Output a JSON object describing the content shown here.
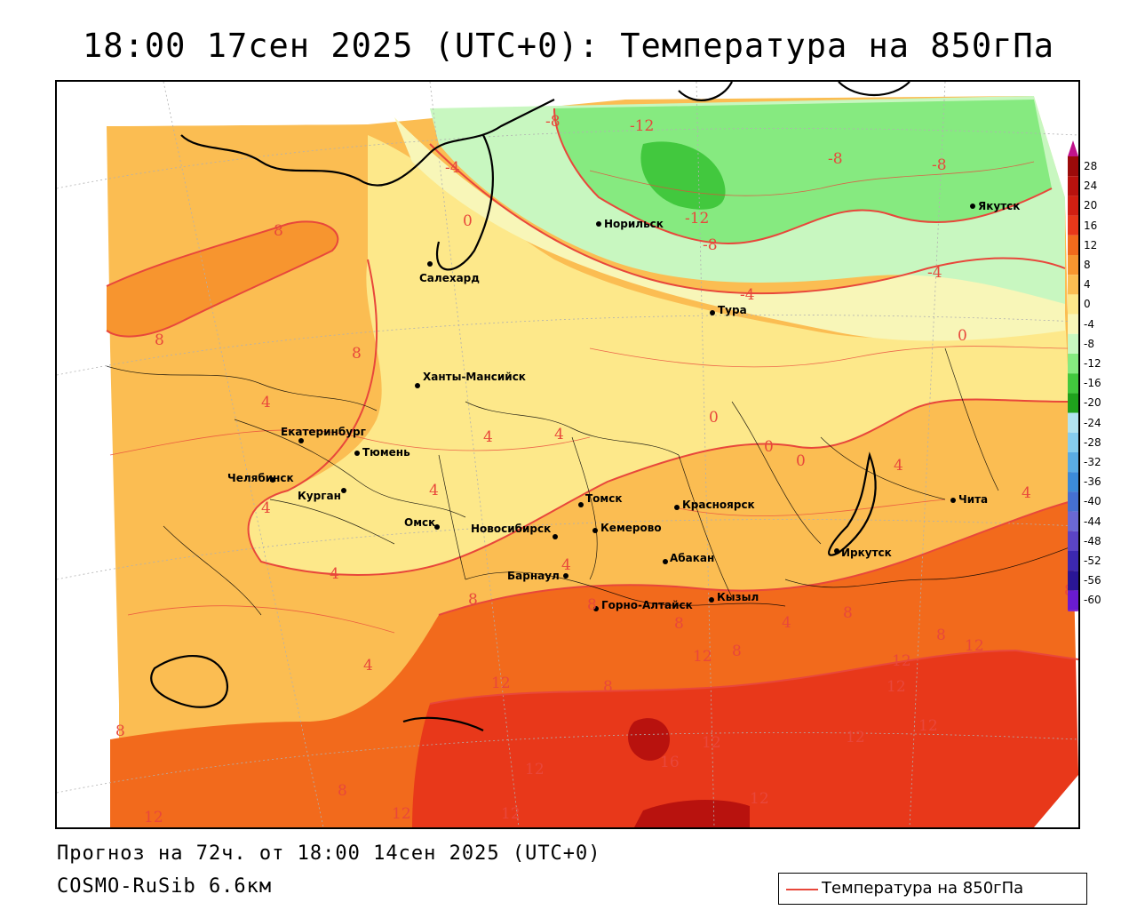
{
  "header": {
    "title": "18:00 17сен 2025 (UTC+0): Температура на 850гПа"
  },
  "footer": {
    "forecast": "Прогноз на 72ч. от 18:00 14сен 2025 (UTC+0)",
    "model": "COSMO-RuSib 6.6км"
  },
  "legend": {
    "label": "Температура на 850гПа",
    "line_color": "#e8473b"
  },
  "colorbar": {
    "labels": [
      "28",
      "24",
      "20",
      "16",
      "12",
      "8",
      "4",
      "0",
      "-4",
      "-8",
      "-12",
      "-16",
      "-20",
      "-24",
      "-28",
      "-32",
      "-36",
      "-40",
      "-44",
      "-48",
      "-52",
      "-56",
      "-60"
    ],
    "colors": [
      "#9b0a0a",
      "#b8120e",
      "#d21f12",
      "#e8381a",
      "#f26a1c",
      "#f7952f",
      "#fbbd52",
      "#fde88a",
      "#f8f6b8",
      "#c8f7c0",
      "#86ea80",
      "#42c83e",
      "#1fa21d",
      "#b2e4f0",
      "#86cdee",
      "#5aace4",
      "#3c8bd8",
      "#4570d2",
      "#6a68d4",
      "#5b44c4",
      "#3c28b0",
      "#2a1696",
      "#6a1bd0"
    ],
    "top_arrow_color": "#c0138c",
    "bottom_arrow_color": "#8a22c8"
  },
  "cities": [
    {
      "name": "Норильск"
    },
    {
      "name": "Якутск"
    },
    {
      "name": "Салехард"
    },
    {
      "name": "Тура"
    },
    {
      "name": "Ханты-Мансийск"
    },
    {
      "name": "Екатеринбург"
    },
    {
      "name": "Тюмень"
    },
    {
      "name": "Челябинск"
    },
    {
      "name": "Курган"
    },
    {
      "name": "Омск"
    },
    {
      "name": "Новосибирск"
    },
    {
      "name": "Томск"
    },
    {
      "name": "Кемерово"
    },
    {
      "name": "Красноярск"
    },
    {
      "name": "Абакан"
    },
    {
      "name": "Барнаул"
    },
    {
      "name": "Горно-Алтайск"
    },
    {
      "name": "Кызыл"
    },
    {
      "name": "Иркутск"
    },
    {
      "name": "Чита"
    }
  ],
  "isolines": [
    {
      "value": "-8"
    },
    {
      "value": "-12"
    },
    {
      "value": "-4"
    },
    {
      "value": "-8"
    },
    {
      "value": "-8"
    },
    {
      "value": "0"
    },
    {
      "value": "-12"
    },
    {
      "value": "-8"
    },
    {
      "value": "-4"
    },
    {
      "value": "-4"
    },
    {
      "value": "0"
    },
    {
      "value": "8"
    },
    {
      "value": "8"
    },
    {
      "value": "8"
    },
    {
      "value": "4"
    },
    {
      "value": "4"
    },
    {
      "value": "4"
    },
    {
      "value": "4"
    },
    {
      "value": "0"
    },
    {
      "value": "0"
    },
    {
      "value": "0"
    },
    {
      "value": "4"
    },
    {
      "value": "4"
    },
    {
      "value": "4"
    },
    {
      "value": "4"
    },
    {
      "value": "4"
    },
    {
      "value": "8"
    },
    {
      "value": "8"
    },
    {
      "value": "4"
    },
    {
      "value": "8"
    },
    {
      "value": "8"
    },
    {
      "value": "4"
    },
    {
      "value": "12"
    },
    {
      "value": "8"
    },
    {
      "value": "8"
    },
    {
      "value": "8"
    },
    {
      "value": "12"
    },
    {
      "value": "12"
    },
    {
      "value": "12"
    },
    {
      "value": "12"
    },
    {
      "value": "12"
    },
    {
      "value": "12"
    },
    {
      "value": "12"
    },
    {
      "value": "12"
    },
    {
      "value": "16"
    },
    {
      "value": "8"
    },
    {
      "value": "12"
    },
    {
      "value": "12"
    },
    {
      "value": "12"
    },
    {
      "value": "8"
    },
    {
      "value": "12"
    },
    {
      "value": "8"
    }
  ]
}
